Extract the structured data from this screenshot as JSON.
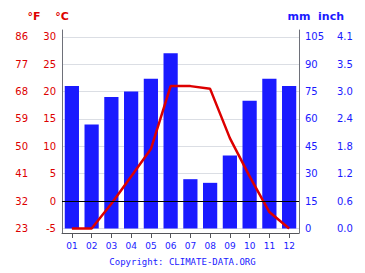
{
  "chart_data": {
    "type": "bar",
    "categories": [
      "01",
      "02",
      "03",
      "04",
      "05",
      "06",
      "07",
      "08",
      "09",
      "10",
      "11",
      "12"
    ],
    "series": [
      {
        "type": "bar",
        "color": "#1a1aff",
        "axis": "y2",
        "values": [
          78,
          57,
          72,
          75,
          82,
          96,
          27,
          25,
          40,
          70,
          82,
          78
        ]
      },
      {
        "type": "line",
        "color": "#dd0000",
        "values": [
          -5.0,
          -5.0,
          -0.5,
          4.5,
          9.5,
          21.0,
          21.0,
          20.5,
          11.5,
          4.5,
          -2.0,
          -5.0
        ]
      }
    ],
    "ylabel": "°C",
    "ylim": [
      -5.83,
      31.25
    ],
    "yticks": [
      -5,
      0,
      5,
      10,
      15,
      20,
      25,
      30
    ],
    "y2label": "mm",
    "y2lim": [
      -2.49,
      108.75
    ],
    "y2ticks": [
      0,
      15,
      30,
      45,
      60,
      75,
      90,
      105
    ],
    "y3label": "°F",
    "y3lim": [
      21.506,
      88.25
    ],
    "y3ticks": [
      23,
      32,
      41,
      50,
      59,
      68,
      77,
      86
    ],
    "y4label": "inch",
    "y4lim": [
      -0.098,
      4.2815
    ],
    "y4ticks": [
      {
        "value": 0,
        "label": "0.0"
      },
      {
        "value": 0.5906,
        "label": "0.6"
      },
      {
        "value": 1.1811,
        "label": "1.2"
      },
      {
        "value": 1.7717,
        "label": "1.8"
      },
      {
        "value": 2.3622,
        "label": "2.4"
      },
      {
        "value": 2.9528,
        "label": "3.0"
      },
      {
        "value": 3.5433,
        "label": "3.5"
      },
      {
        "value": 4.1339,
        "label": "4.1"
      }
    ],
    "hlines": [
      {
        "value": 0,
        "color": "#000000"
      }
    ],
    "grid": true,
    "annotation": "Copyright: CLIMATE-DATA.ORG"
  }
}
